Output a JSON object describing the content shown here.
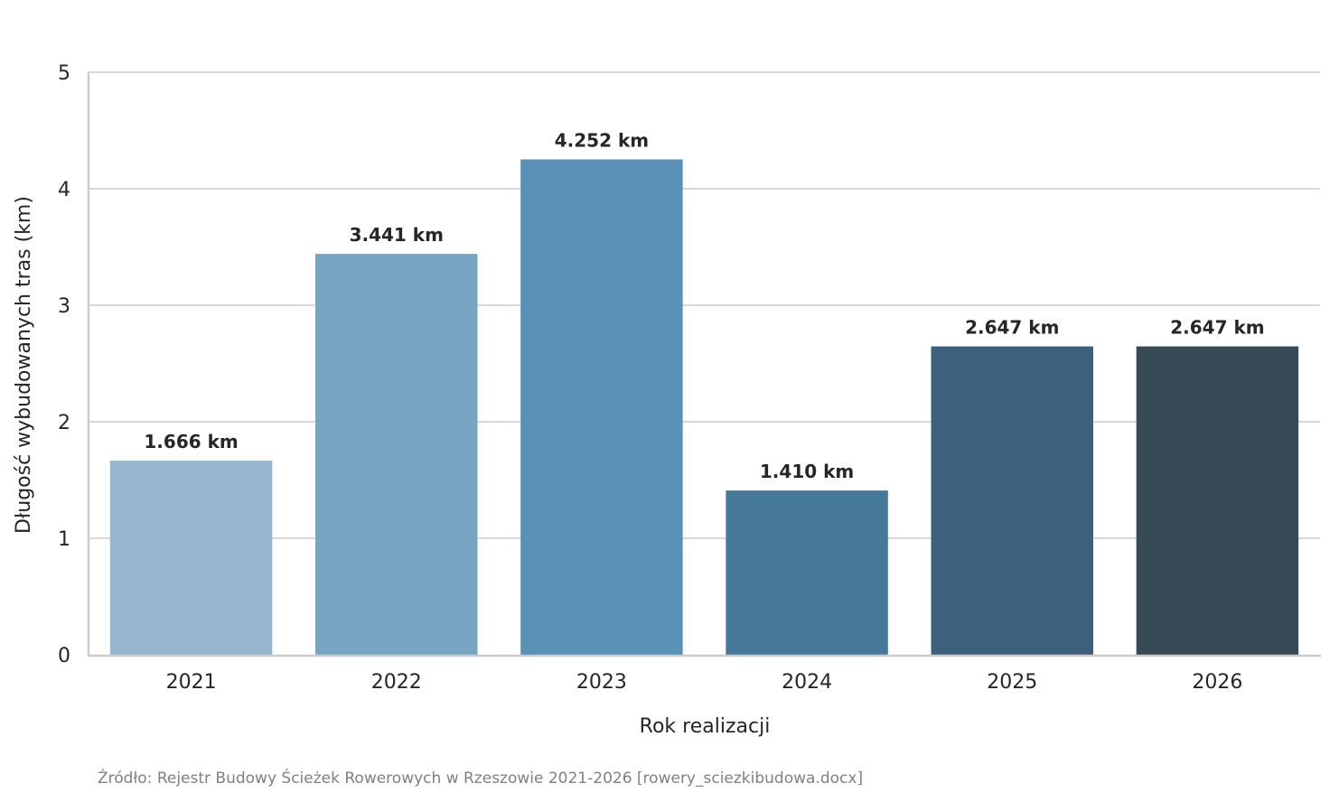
{
  "chart_data": {
    "type": "bar",
    "categories": [
      "2021",
      "2022",
      "2023",
      "2024",
      "2025",
      "2026"
    ],
    "values": [
      1.666,
      3.441,
      4.252,
      1.41,
      2.647,
      2.647
    ],
    "data_labels": [
      "1.666 km",
      "3.441 km",
      "4.252 km",
      "1.410 km",
      "2.647 km",
      "2.647 km"
    ],
    "colors": [
      "#97b7d0",
      "#76a4c3",
      "#5a91b6",
      "#467899",
      "#3f607a",
      "#384956"
    ],
    "title": "",
    "xlabel": "Rok realizacji",
    "ylabel": "Długość wybudowanych tras (km)",
    "ylim": [
      0,
      5
    ],
    "yticks": [
      0,
      1,
      2,
      3,
      4,
      5
    ],
    "grid": "horizontal",
    "legend": "none"
  },
  "footer": {
    "source": "Źródło: Rejestr Budowy Ścieżek Rowerowych w Rzeszowie 2021-2026 [rowery_sciezkibudowa.docx]"
  }
}
